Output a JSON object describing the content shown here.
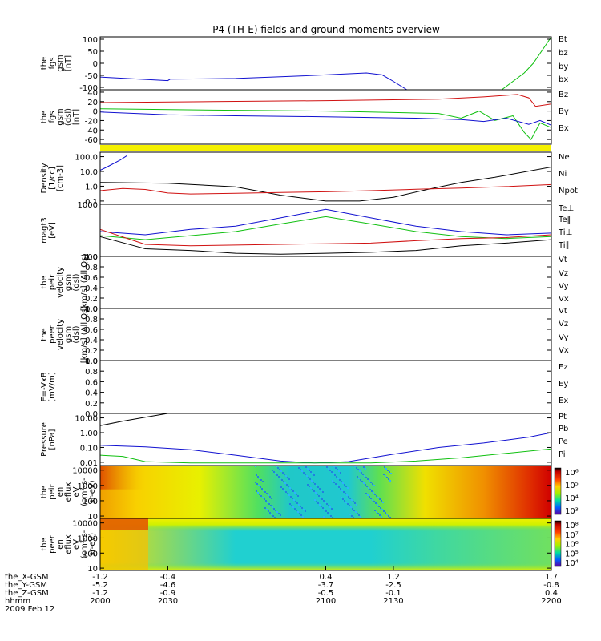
{
  "chart_data": {
    "type": "line",
    "title": "P4 (TH-E) fields and ground moments overview",
    "panels": [
      {
        "id": "fgs-gsm-1",
        "ylabel": [
          "the",
          "fgs",
          "gsm",
          "[nT]"
        ],
        "yticks": [
          "100",
          "50",
          "0",
          "-50",
          "-100"
        ],
        "ytick_values": [
          100,
          50,
          0,
          -50,
          -100
        ],
        "ylim": [
          -110,
          110
        ],
        "legend": [
          {
            "label": "Bt",
            "color": "#000000"
          },
          {
            "label": "bz",
            "color": "#d01010"
          },
          {
            "label": "by",
            "color": "#10c010"
          },
          {
            "label": "bx",
            "color": "#1010d0"
          }
        ],
        "series": [
          {
            "color": "#1010d0",
            "x": [
              2000,
              2030,
              2031,
              2060,
              2080,
              2100,
              2118,
              2125,
              2130,
              2136
            ],
            "y": [
              -57,
              -72,
              -66,
              -63,
              -56,
              -48,
              -40,
              -48,
              -75,
              -110
            ]
          },
          {
            "color": "#10c010",
            "x": [
              2178,
              2188,
              2192,
              2200
            ],
            "y": [
              -110,
              -40,
              0,
              110
            ]
          }
        ]
      },
      {
        "id": "fgs-gsm-2",
        "ylabel": [
          "the",
          "fgs",
          "gsm",
          "(dsl)",
          "[nT]"
        ],
        "yticks": [
          "40",
          "20",
          "0",
          "-20",
          "-40",
          "-60"
        ],
        "ytick_values": [
          40,
          20,
          0,
          -20,
          -40,
          -60
        ],
        "ylim": [
          -70,
          45
        ],
        "legend": [
          {
            "label": "Bz",
            "color": "#d01010"
          },
          {
            "label": "By",
            "color": "#10c010"
          },
          {
            "label": "Bx",
            "color": "#1010d0"
          }
        ],
        "series": [
          {
            "color": "#d01010",
            "x": [
              2000,
              2050,
              2100,
              2150,
              2170,
              2185,
              2190,
              2193,
              2200
            ],
            "y": [
              18,
              20,
              22,
              25,
              30,
              35,
              28,
              10,
              15
            ]
          },
          {
            "color": "#10c010",
            "x": [
              2000,
              2050,
              2100,
              2150,
              2160,
              2168,
              2175,
              2183,
              2188,
              2191,
              2195,
              2200
            ],
            "y": [
              5,
              2,
              0,
              -5,
              -15,
              0,
              -20,
              -10,
              -45,
              -60,
              -25,
              -35
            ]
          },
          {
            "color": "#1010d0",
            "x": [
              2000,
              2030,
              2060,
              2100,
              2140,
              2160,
              2170,
              2180,
              2190,
              2195,
              2200
            ],
            "y": [
              -2,
              -8,
              -10,
              -12,
              -15,
              -18,
              -22,
              -15,
              -28,
              -20,
              -30
            ]
          }
        ]
      },
      {
        "id": "density",
        "ylabel": [
          "Density",
          "[1/cc]",
          "[cm-3]"
        ],
        "yticks": [
          "100.0",
          "10.0",
          "1.0",
          "0.1"
        ],
        "ytick_values": [
          100,
          10,
          1,
          0.1
        ],
        "ylim": [
          0.06,
          200
        ],
        "log": true,
        "legend": [
          {
            "label": "Ne",
            "color": "#d01010"
          },
          {
            "label": "Ni",
            "color": "#000000"
          },
          {
            "label": "Npot",
            "color": "#1010d0"
          }
        ],
        "series": [
          {
            "color": "#000000",
            "x": [
              2000,
              2030,
              2060,
              2080,
              2100,
              2115,
              2130,
              2145,
              2160,
              2175,
              2200
            ],
            "y": [
              1.8,
              1.6,
              0.9,
              0.25,
              0.1,
              0.1,
              0.18,
              0.6,
              1.8,
              4,
              20
            ]
          },
          {
            "color": "#d01010",
            "x": [
              2000,
              2010,
              2020,
              2030,
              2040,
              2060,
              2080,
              2100,
              2120,
              2140,
              2160,
              2180,
              2200
            ],
            "y": [
              0.5,
              0.7,
              0.6,
              0.35,
              0.3,
              0.33,
              0.38,
              0.42,
              0.5,
              0.62,
              0.75,
              0.95,
              1.3
            ]
          },
          {
            "color": "#1010d0",
            "x": [
              2000,
              2003,
              2006,
              2009,
              2012
            ],
            "y": [
              12,
              20,
              35,
              60,
              120
            ]
          }
        ]
      },
      {
        "id": "temperature",
        "ylabel": [
          "magt3",
          "[eV]"
        ],
        "yticks": [
          "1000",
          "100"
        ],
        "ytick_values": [
          1000,
          100
        ],
        "ylim": [
          100,
          1000
        ],
        "log": true,
        "legend": [
          {
            "label": "Te⊥",
            "color": "#d01010"
          },
          {
            "label": "Te∥",
            "color": "#000000"
          },
          {
            "label": "Ti⊥",
            "color": "#1010d0"
          },
          {
            "label": "Ti∥",
            "color": "#10c010"
          }
        ],
        "series": [
          {
            "color": "#1010d0",
            "x": [
              2000,
              2020,
              2040,
              2060,
              2080,
              2100,
              2120,
              2140,
              2160,
              2180,
              2200
            ],
            "y": [
              300,
              260,
              330,
              380,
              550,
              800,
              550,
              380,
              300,
              260,
              280
            ]
          },
          {
            "color": "#10c010",
            "x": [
              2000,
              2020,
              2040,
              2060,
              2080,
              2100,
              2120,
              2140,
              2160,
              2180,
              2200
            ],
            "y": [
              250,
              210,
              250,
              300,
              420,
              580,
              420,
              300,
              240,
              220,
              240
            ]
          },
          {
            "color": "#d01010",
            "x": [
              2000,
              2015,
              2020,
              2040,
              2060,
              2080,
              2100,
              2120,
              2140,
              2160,
              2180,
              2200
            ],
            "y": [
              330,
              200,
              170,
              160,
              165,
              170,
              175,
              180,
              200,
              220,
              230,
              260
            ]
          },
          {
            "color": "#000000",
            "x": [
              2000,
              2015,
              2020,
              2040,
              2060,
              2080,
              2100,
              2120,
              2140,
              2160,
              2180,
              2200
            ],
            "y": [
              240,
              160,
              140,
              130,
              115,
              110,
              115,
              120,
              130,
              160,
              180,
              210
            ]
          }
        ]
      },
      {
        "id": "peir-velocity",
        "ylabel": [
          "the",
          "peir",
          "velocity",
          "gsm",
          "(dsl)",
          "[km/s] (All Qs)"
        ],
        "yticks": [
          "1.0",
          "0.8",
          "0.6",
          "0.4",
          "0.2",
          "0.0"
        ],
        "ytick_values": [
          1,
          0.8,
          0.6,
          0.4,
          0.2,
          0
        ],
        "ylim": [
          0,
          1
        ],
        "legend": [
          {
            "label": "Vt",
            "color": "#000000"
          },
          {
            "label": "Vz",
            "color": "#d01010"
          },
          {
            "label": "Vy",
            "color": "#10c010"
          },
          {
            "label": "Vx",
            "color": "#1010d0"
          }
        ],
        "series": []
      },
      {
        "id": "peer-velocity",
        "ylabel": [
          "the",
          "peer",
          "velocity",
          "gsm",
          "(dsl)",
          "[km/s] (All Qs)"
        ],
        "yticks": [
          "1.0",
          "0.8",
          "0.6",
          "0.4",
          "0.2",
          "0.0"
        ],
        "ytick_values": [
          1,
          0.8,
          0.6,
          0.4,
          0.2,
          0
        ],
        "ylim": [
          0,
          1
        ],
        "legend": [
          {
            "label": "Vt",
            "color": "#000000"
          },
          {
            "label": "Vz",
            "color": "#d01010"
          },
          {
            "label": "Vy",
            "color": "#10c010"
          },
          {
            "label": "Vx",
            "color": "#1010d0"
          }
        ],
        "series": []
      },
      {
        "id": "efield",
        "ylabel": [
          "E=-VxB",
          "[mV/m]"
        ],
        "yticks": [
          "1.0",
          "0.8",
          "0.6",
          "0.4",
          "0.2",
          "0.0"
        ],
        "ytick_values": [
          1,
          0.8,
          0.6,
          0.4,
          0.2,
          0
        ],
        "ylim": [
          0,
          1
        ],
        "legend": [
          {
            "label": "Ez",
            "color": "#d01010"
          },
          {
            "label": "Ey",
            "color": "#10c010"
          },
          {
            "label": "Ex",
            "color": "#1010d0"
          }
        ],
        "series": []
      },
      {
        "id": "pressure",
        "ylabel": [
          "Pressure",
          "[nPa]"
        ],
        "yticks": [
          "10.00",
          "1.00",
          "0.10",
          "0.01"
        ],
        "ytick_values": [
          10,
          1,
          0.1,
          0.01
        ],
        "ylim": [
          0.006,
          20
        ],
        "log": true,
        "legend": [
          {
            "label": "Pt",
            "color": "#000000"
          },
          {
            "label": "Pb",
            "color": "#d01010"
          },
          {
            "label": "Pe",
            "color": "#10c010"
          },
          {
            "label": "Pi",
            "color": "#1010d0"
          }
        ],
        "series": [
          {
            "color": "#000000",
            "x": [
              2000,
              2010,
              2020,
              2030
            ],
            "y": [
              3,
              6,
              11,
              20
            ]
          },
          {
            "color": "#1010d0",
            "x": [
              2000,
              2020,
              2040,
              2060,
              2080,
              2095,
              2110,
              2130,
              2150,
              2170,
              2190,
              2200
            ],
            "y": [
              0.14,
              0.11,
              0.07,
              0.03,
              0.012,
              0.009,
              0.011,
              0.035,
              0.1,
              0.2,
              0.5,
              1.0
            ]
          },
          {
            "color": "#10c010",
            "x": [
              2000,
              2010,
              2020,
              2040,
              2060,
              2080,
              2100,
              2120,
              2140,
              2160,
              2180,
              2200
            ],
            "y": [
              0.03,
              0.025,
              0.011,
              0.009,
              0.009,
              0.009,
              0.009,
              0.009,
              0.012,
              0.02,
              0.04,
              0.08
            ]
          }
        ]
      },
      {
        "id": "peir-spectrogram",
        "type": "heatmap",
        "ylabel": [
          "the",
          "peir",
          "en",
          "eflux",
          "eV",
          "(cm²-s-",
          "sr-eV)"
        ],
        "yticks": [
          "10000",
          "1000",
          "100",
          "10"
        ],
        "ytick_values": [
          10000,
          1000,
          100,
          10
        ],
        "ylim": [
          7,
          20000
        ],
        "log": true,
        "colorbar_labels": [
          "10⁶",
          "10⁵",
          "10⁴",
          "10³"
        ]
      },
      {
        "id": "peer-spectrogram",
        "type": "heatmap",
        "ylabel": [
          "the",
          "peer",
          "en",
          "eflux",
          "eV",
          "(cm²-s-",
          "sr-eV)"
        ],
        "yticks": [
          "10000",
          "1000",
          "100",
          "10"
        ],
        "ytick_values": [
          10000,
          1000,
          100,
          10
        ],
        "ylim": [
          7,
          20000
        ],
        "log": true,
        "colorbar_labels": [
          "10⁸",
          "10⁷",
          "10⁶",
          "10⁵",
          "10⁴"
        ]
      }
    ],
    "x_ticks": [
      {
        "x": 2000,
        "X": "-1.2",
        "Y": "-5.2",
        "Z": "-1.2",
        "hhmm": "2000"
      },
      {
        "x": 2030,
        "X": "-0.4",
        "Y": "-4.6",
        "Z": "-0.9",
        "hhmm": "2030"
      },
      {
        "x": 2100,
        "X": "0.4",
        "Y": "-3.7",
        "Z": "-0.5",
        "hhmm": "2100"
      },
      {
        "x": 2130,
        "X": "1.2",
        "Y": "-2.5",
        "Z": "-0.1",
        "hhmm": "2130"
      },
      {
        "x": 2200,
        "X": "1.7",
        "Y": "-0.8",
        "Z": "0.4",
        "hhmm": "2200"
      }
    ],
    "x_row_labels": [
      "the_X-GSM",
      "the_Y-GSM",
      "the_Z-GSM",
      "hhmm"
    ],
    "date_label": "2009 Feb 12",
    "xlim": [
      2000,
      2200
    ]
  }
}
